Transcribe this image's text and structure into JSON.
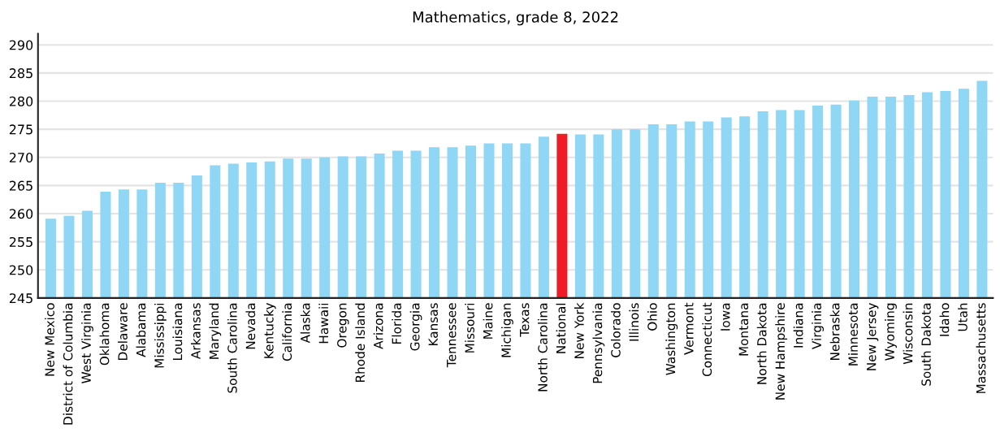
{
  "chart_data": {
    "type": "bar",
    "title": "Mathematics, grade 8, 2022",
    "categories": [
      "New Mexico",
      "District of Columbia",
      "West Virginia",
      "Oklahoma",
      "Delaware",
      "Alabama",
      "Mississippi",
      "Louisiana",
      "Arkansas",
      "Maryland",
      "South Carolina",
      "Nevada",
      "Kentucky",
      "California",
      "Alaska",
      "Hawaii",
      "Oregon",
      "Rhode Island",
      "Arizona",
      "Florida",
      "Georgia",
      "Kansas",
      "Tennessee",
      "Missouri",
      "Maine",
      "Michigan",
      "Texas",
      "North Carolina",
      "National",
      "New York",
      "Pennsylvania",
      "Colorado",
      "Illinois",
      "Ohio",
      "Washington",
      "Vermont",
      "Connecticut",
      "Iowa",
      "Montana",
      "North Dakota",
      "New Hampshire",
      "Indiana",
      "Virginia",
      "Nebraska",
      "Minnesota",
      "New Jersey",
      "Wyoming",
      "Wisconsin",
      "South Dakota",
      "Idaho",
      "Utah",
      "Massachusetts"
    ],
    "values": [
      259.1,
      259.6,
      260.5,
      263.9,
      264.3,
      264.3,
      265.5,
      265.5,
      266.8,
      268.6,
      268.9,
      269.1,
      269.3,
      269.8,
      269.8,
      270.0,
      270.2,
      270.2,
      270.7,
      271.2,
      271.2,
      271.8,
      271.8,
      272.1,
      272.5,
      272.5,
      272.5,
      273.7,
      274.2,
      274.1,
      274.1,
      275.0,
      275.0,
      275.9,
      275.9,
      276.4,
      276.4,
      277.1,
      277.3,
      278.2,
      278.4,
      278.4,
      279.2,
      279.4,
      280.1,
      280.8,
      280.8,
      281.1,
      281.6,
      281.8,
      282.2,
      283.6
    ],
    "colors": [
      "#8fd7f5",
      "#8fd7f5",
      "#8fd7f5",
      "#8fd7f5",
      "#8fd7f5",
      "#8fd7f5",
      "#8fd7f5",
      "#8fd7f5",
      "#8fd7f5",
      "#8fd7f5",
      "#8fd7f5",
      "#8fd7f5",
      "#8fd7f5",
      "#8fd7f5",
      "#8fd7f5",
      "#8fd7f5",
      "#8fd7f5",
      "#8fd7f5",
      "#8fd7f5",
      "#8fd7f5",
      "#8fd7f5",
      "#8fd7f5",
      "#8fd7f5",
      "#8fd7f5",
      "#8fd7f5",
      "#8fd7f5",
      "#8fd7f5",
      "#8fd7f5",
      "#ee1c25",
      "#8fd7f5",
      "#8fd7f5",
      "#8fd7f5",
      "#8fd7f5",
      "#8fd7f5",
      "#8fd7f5",
      "#8fd7f5",
      "#8fd7f5",
      "#8fd7f5",
      "#8fd7f5",
      "#8fd7f5",
      "#8fd7f5",
      "#8fd7f5",
      "#8fd7f5",
      "#8fd7f5",
      "#8fd7f5",
      "#8fd7f5",
      "#8fd7f5",
      "#8fd7f5",
      "#8fd7f5",
      "#8fd7f5",
      "#8fd7f5",
      "#8fd7f5"
    ],
    "ylim": [
      245,
      292
    ],
    "yticks": [
      245,
      250,
      255,
      260,
      265,
      270,
      275,
      280,
      285,
      290
    ],
    "grid": "y",
    "legend": false
  }
}
